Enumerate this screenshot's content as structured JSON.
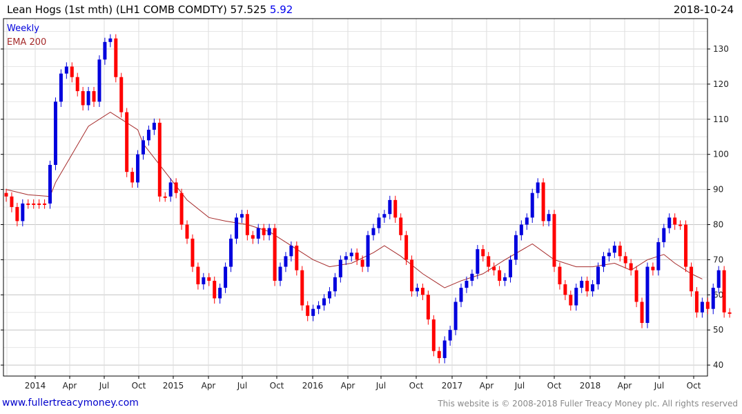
{
  "header": {
    "title": "Lean Hogs (1st mth)  (LH1 COMB COMDTY) 57.525",
    "change": "5.92",
    "date": "2018-10-24"
  },
  "footer": {
    "left": "www.fullertreacymoney.com",
    "right": "This website is © 2008-2018 Fuller Treacy Money plc. All rights reserved"
  },
  "chart_data": {
    "type": "candlestick",
    "interval_label": "Weekly",
    "legend": [
      {
        "name": "Weekly",
        "color": "#0000dd"
      },
      {
        "name": "EMA 200",
        "color": "#a52a2a"
      }
    ],
    "ylim": [
      38,
      136
    ],
    "yticks": [
      40,
      50,
      60,
      70,
      80,
      90,
      100,
      110,
      120,
      130
    ],
    "xticks": [
      "2014",
      "Apr",
      "Jul",
      "Oct",
      "2015",
      "Apr",
      "Jul",
      "Oct",
      "2016",
      "Apr",
      "Jul",
      "Oct",
      "2017",
      "Apr",
      "Jul",
      "Oct",
      "2018",
      "Apr",
      "Jul",
      "Oct"
    ],
    "up_color": "#0000dd",
    "down_color": "#ff0000",
    "ema_color": "#a52a2a",
    "closes_biweekly": [
      88,
      85,
      81,
      86,
      86,
      86,
      86,
      86,
      97,
      115,
      123,
      125,
      122,
      118,
      114,
      118,
      115,
      127,
      132,
      133,
      122,
      112,
      95,
      92,
      100,
      104,
      107,
      109,
      88,
      88,
      92,
      89,
      80,
      76,
      68,
      63,
      65,
      64,
      59,
      62,
      68,
      76,
      82,
      83,
      77,
      76,
      79,
      77,
      79,
      64,
      68,
      71,
      74,
      67,
      57,
      54,
      56,
      57,
      59,
      61,
      65,
      70,
      71,
      72,
      70,
      68,
      77,
      79,
      82,
      83,
      87,
      82,
      77,
      70,
      61,
      62,
      60,
      53,
      44,
      42,
      47,
      50,
      58,
      62,
      64,
      66,
      73,
      71,
      68,
      67,
      64,
      65,
      70,
      77,
      80,
      82,
      89,
      92,
      81,
      83,
      68,
      63,
      60,
      57,
      62,
      64,
      61,
      63,
      68,
      71,
      72,
      74,
      71,
      69,
      67,
      58,
      52,
      68,
      67,
      75,
      79,
      82,
      80,
      80,
      68,
      61,
      55,
      58,
      56,
      62,
      67,
      55,
      55
    ],
    "ema200": [
      [
        0,
        90
      ],
      [
        4,
        88.5
      ],
      [
        8,
        88
      ],
      [
        9,
        92
      ],
      [
        12,
        100
      ],
      [
        15,
        108
      ],
      [
        19,
        112
      ],
      [
        20,
        111
      ],
      [
        24,
        107
      ],
      [
        25,
        103
      ],
      [
        29,
        95
      ],
      [
        33,
        87
      ],
      [
        37,
        82
      ],
      [
        40,
        81
      ],
      [
        44,
        80
      ],
      [
        48,
        78
      ],
      [
        52,
        74
      ],
      [
        56,
        70
      ],
      [
        59,
        68
      ],
      [
        63,
        69
      ],
      [
        67,
        72
      ],
      [
        69,
        74
      ],
      [
        72,
        71
      ],
      [
        76,
        66
      ],
      [
        80,
        62
      ],
      [
        83,
        64
      ],
      [
        87,
        66
      ],
      [
        91,
        70
      ],
      [
        96,
        74.5
      ],
      [
        100,
        70
      ],
      [
        104,
        68
      ],
      [
        107,
        68
      ],
      [
        111,
        69
      ],
      [
        114,
        67
      ],
      [
        117,
        70
      ],
      [
        120,
        71.5
      ],
      [
        122,
        69
      ],
      [
        125,
        66
      ],
      [
        127,
        64.5
      ]
    ]
  }
}
